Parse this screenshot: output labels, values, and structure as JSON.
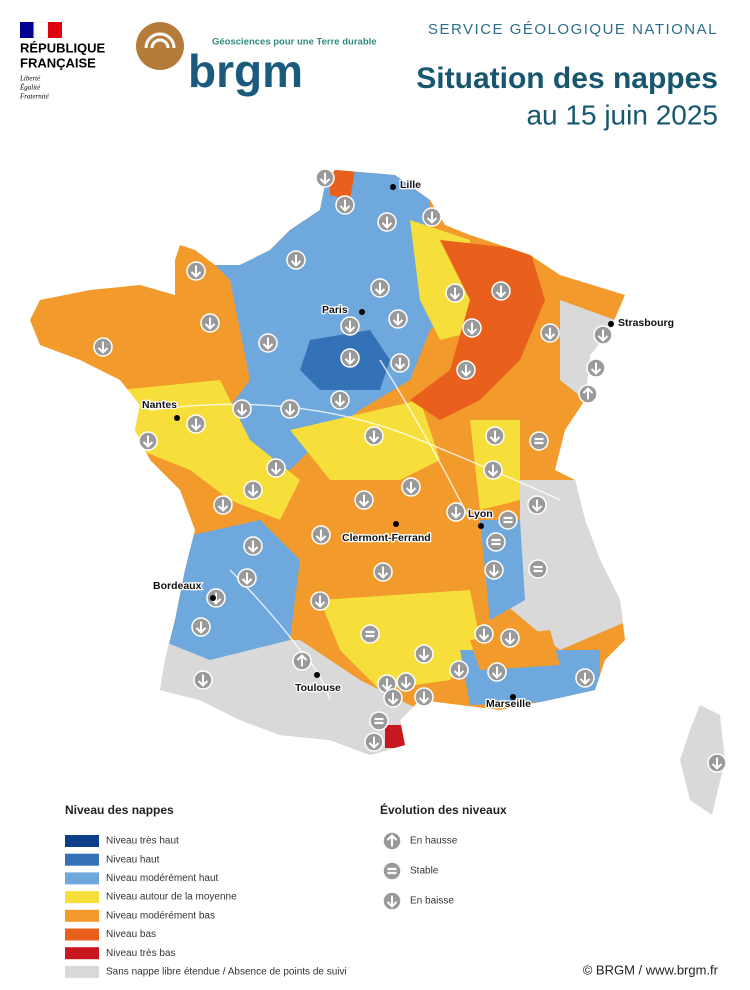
{
  "header": {
    "republic": [
      "RÉPUBLIQUE",
      "FRANÇAISE"
    ],
    "motto": [
      "Liberté",
      "Égalité",
      "Fraternité"
    ],
    "tagline": "Géosciences pour une Terre durable",
    "logo": "brgm",
    "service": "SERVICE GÉOLOGIQUE NATIONAL",
    "title": "Situation des nappes",
    "subtitle": "au 15 juin 2025"
  },
  "cities": [
    {
      "label": "Lille"
    },
    {
      "label": "Paris"
    },
    {
      "label": "Strasbourg"
    },
    {
      "label": "Nantes"
    },
    {
      "label": "Lyon"
    },
    {
      "label": "Clermont-Ferrand"
    },
    {
      "label": "Bordeaux"
    },
    {
      "label": "Toulouse"
    },
    {
      "label": "Marseille"
    }
  ],
  "legend": {
    "title": "Niveau des nappes",
    "items": [
      {
        "label": "Niveau très haut",
        "color": "#0b3f8c"
      },
      {
        "label": "Niveau haut",
        "color": "#3472b8"
      },
      {
        "label": "Niveau modérément haut",
        "color": "#6fa8dc"
      },
      {
        "label": "Niveau autour de la moyenne",
        "color": "#f6df3a"
      },
      {
        "label": "Niveau modérément bas",
        "color": "#f39a2c"
      },
      {
        "label": "Niveau bas",
        "color": "#e8601b"
      },
      {
        "label": "Niveau très bas",
        "color": "#c9171f"
      },
      {
        "label": "Sans nappe libre étendue / Absence de points de suivi",
        "color": "#d9d9d9"
      }
    ]
  },
  "evolution": {
    "title": "Évolution des niveaux",
    "items": [
      "En hausse",
      "Stable",
      "En baisse"
    ]
  },
  "credit": "© BRGM / www.brgm.fr"
}
